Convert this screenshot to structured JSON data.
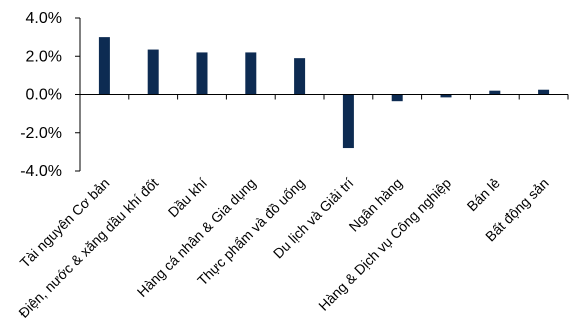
{
  "chart_data": {
    "type": "bar",
    "title": "",
    "xlabel": "",
    "ylabel": "",
    "categories": [
      "Tài nguyên Cơ bản",
      "Điện, nước & xăng dầu khí đốt",
      "Dầu khí",
      "Hàng cá nhân & Gia dụng",
      "Thực phẩm và đồ uống",
      "Du lịch và Giải trí",
      "Ngân hàng",
      "Hàng & Dịch vụ Công nghiệp",
      "Bán lẻ",
      "Bất động sản"
    ],
    "values": [
      3.0,
      2.35,
      2.2,
      2.2,
      1.9,
      -2.8,
      -0.35,
      -0.15,
      0.2,
      0.25
    ],
    "ylim": [
      -4.0,
      4.0
    ],
    "yticks": [
      "4.0%",
      "2.0%",
      "0.0%",
      "-2.0%",
      "-4.0%"
    ],
    "ytick_values": [
      4.0,
      2.0,
      0.0,
      -2.0,
      -4.0
    ],
    "grid": false,
    "legend": "none",
    "colors": {
      "bar": "#0d2b52",
      "axis": "#000000"
    }
  }
}
